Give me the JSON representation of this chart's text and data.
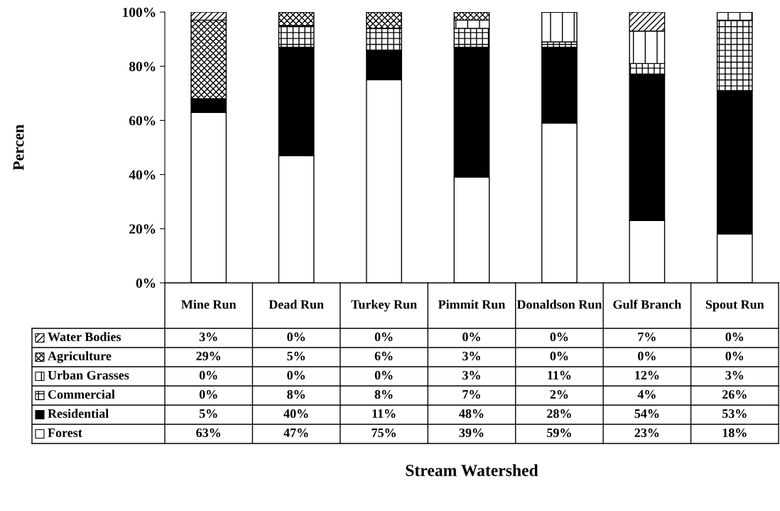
{
  "chart_data": {
    "type": "bar",
    "stacked": true,
    "grid": false,
    "legend": "bottom left",
    "annotations": [
      "Percen",
      "Stream Watershed"
    ],
    "categories": [
      "Mine Run",
      "Dead Run",
      "Turkey Run",
      "Pimmit Run",
      "Donaldson Run",
      "Gulf Branch",
      "Spout Run"
    ],
    "ylim": [
      0,
      100
    ],
    "yticks": [
      {
        "value": 0,
        "label": "0%"
      },
      {
        "value": 20,
        "label": "20%"
      },
      {
        "value": 40,
        "label": "40%"
      },
      {
        "value": 60,
        "label": "60%"
      },
      {
        "value": 80,
        "label": "80%"
      },
      {
        "value": 100,
        "label": "100%"
      }
    ],
    "series": [
      {
        "name": "Forest",
        "color": "#ffffff",
        "values": [
          63,
          47,
          75,
          39,
          59,
          23,
          18
        ],
        "value_labels": [
          "63%",
          "47%",
          "75%",
          "39%",
          "59%",
          "23%",
          "18%"
        ]
      },
      {
        "name": "Residential",
        "color": "#000000",
        "values": [
          5,
          40,
          11,
          48,
          28,
          54,
          53
        ],
        "value_labels": [
          "5%",
          "40%",
          "11%",
          "48%",
          "28%",
          "54%",
          "53%"
        ]
      },
      {
        "name": "Commercial",
        "color": "#000000",
        "values": [
          0,
          8,
          8,
          7,
          2,
          4,
          26
        ],
        "value_labels": [
          "0%",
          "8%",
          "8%",
          "7%",
          "2%",
          "4%",
          "26%"
        ]
      },
      {
        "name": "Urban Grasses",
        "color": "#000000",
        "values": [
          0,
          0,
          0,
          3,
          11,
          12,
          3
        ],
        "value_labels": [
          "0%",
          "0%",
          "0%",
          "3%",
          "11%",
          "12%",
          "3%"
        ]
      },
      {
        "name": "Agriculture",
        "color": "#000000",
        "values": [
          29,
          5,
          6,
          3,
          0,
          0,
          0
        ],
        "value_labels": [
          "29%",
          "5%",
          "6%",
          "3%",
          "0%",
          "0%",
          "0%"
        ]
      },
      {
        "name": "Water Bodies",
        "color": "#000000",
        "values": [
          3,
          0,
          0,
          0,
          0,
          7,
          0
        ],
        "value_labels": [
          "3%",
          "0%",
          "0%",
          "0%",
          "0%",
          "7%",
          "0%"
        ]
      }
    ]
  }
}
